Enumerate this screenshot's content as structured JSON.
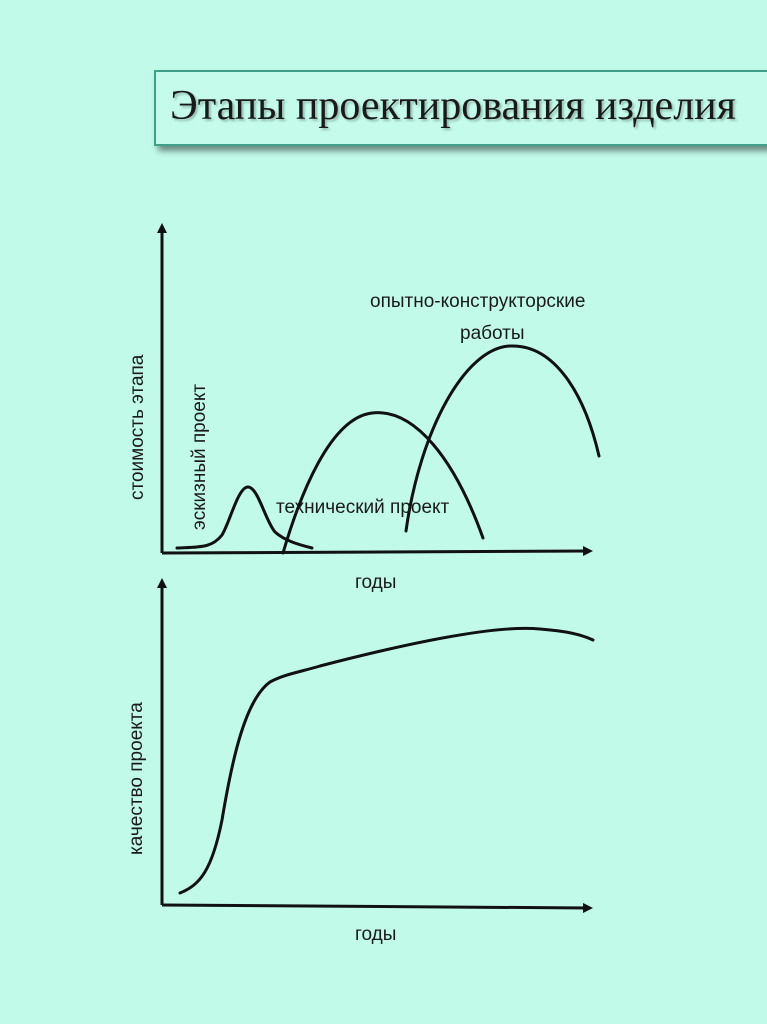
{
  "title": "Этапы проектирования изделия",
  "top_chart": {
    "ylabel": "стоимость этапа",
    "xlabel": "годы",
    "curves": [
      {
        "label": "эскизный проект"
      },
      {
        "label": "технический проект"
      },
      {
        "label_line1": "опытно-конструкторские",
        "label_line2": "работы"
      }
    ]
  },
  "bottom_chart": {
    "ylabel": "качество проекта",
    "xlabel": "годы"
  }
}
